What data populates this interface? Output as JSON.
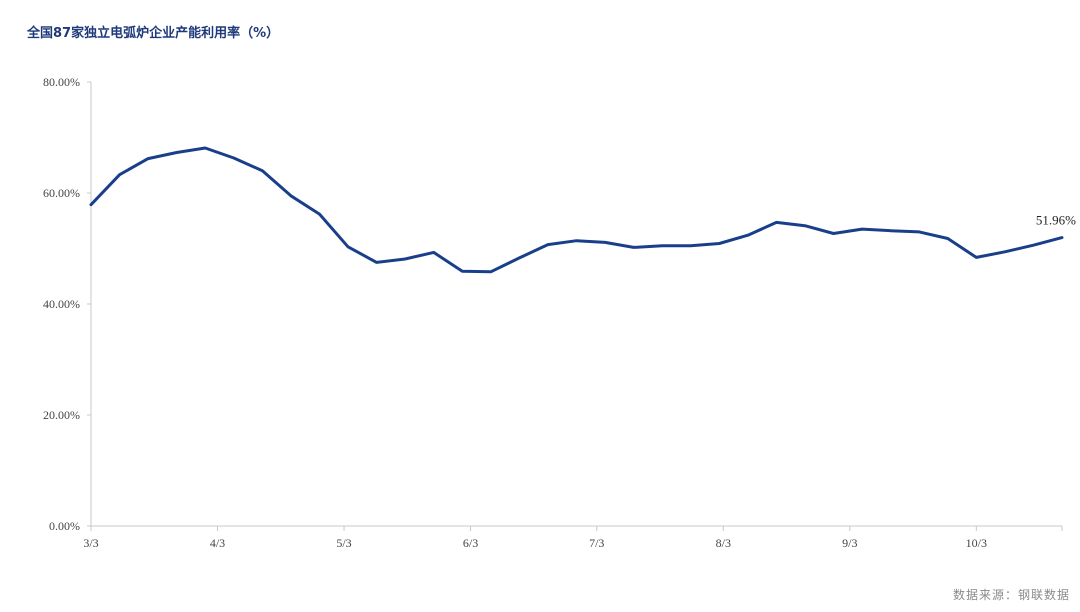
{
  "title": "全国87家独立电弧炉企业产能利用率（%）",
  "source": "数据来源：钢联数据",
  "colors": {
    "line": "#1a3f8a",
    "axis": "#c8c8c8",
    "title": "#1f3a7a"
  },
  "chart_data": {
    "type": "line",
    "title": "全国87家独立电弧炉企业产能利用率（%）",
    "xlabel": "",
    "ylabel": "",
    "ylim": [
      0,
      80
    ],
    "y_ticks": [
      "0.00%",
      "20.00%",
      "40.00%",
      "60.00%",
      "80.00%"
    ],
    "x_tick_labels": [
      "3/3",
      "4/3",
      "5/3",
      "6/3",
      "7/3",
      "8/3",
      "9/3",
      "10/3"
    ],
    "grid": false,
    "series": [
      {
        "values": [
          57.9,
          63.3,
          66.2,
          67.3,
          68.1,
          66.3,
          64.0,
          59.5,
          56.2,
          50.3,
          47.5,
          48.1,
          49.3,
          45.9,
          45.8,
          48.3,
          50.7,
          51.4,
          51.1,
          50.2,
          50.5,
          50.5,
          50.9,
          52.4,
          54.7,
          54.1,
          52.7,
          53.5,
          53.2,
          53.0,
          51.8,
          48.4,
          49.4,
          50.6,
          51.96
        ]
      }
    ],
    "annotations": [
      {
        "text": "51.96%",
        "point_index": 34
      }
    ]
  }
}
